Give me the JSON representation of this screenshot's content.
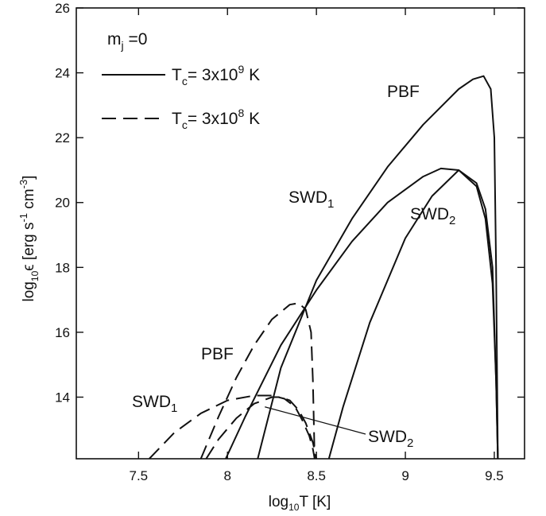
{
  "chart_data": {
    "type": "line",
    "xlabel": {
      "base": "log",
      "sub": "10",
      "rest": "T  [K]"
    },
    "ylabel": {
      "base": "log",
      "sub": "10",
      "sym": "ϵ",
      "unit_a": "[erg s",
      "sup1": "-1",
      "unit_b": " cm",
      "sup2": "-3",
      "unit_c": "]"
    },
    "xlim": [
      7.15,
      9.67
    ],
    "ylim": [
      12.1,
      26
    ],
    "xticks": [
      7.5,
      8,
      8.5,
      9,
      9.5
    ],
    "yticks": [
      14,
      16,
      18,
      20,
      22,
      24,
      26
    ],
    "xtick_labels": [
      "7.5",
      "8",
      "8.5",
      "9",
      "9.5"
    ],
    "ytick_labels": [
      "14",
      "16",
      "18",
      "20",
      "22",
      "24",
      "26"
    ],
    "legend": {
      "header": {
        "base": "m",
        "sub": "j",
        "rest": " =0"
      },
      "entries": [
        {
          "style": "solid",
          "pre": "T",
          "sub": "c",
          "mid": "= 3x10",
          "sup": "9",
          "post": " K"
        },
        {
          "style": "dashed",
          "pre": "T",
          "sub": "c",
          "mid": "= 3x10",
          "sup": "8",
          "post": " K"
        }
      ]
    },
    "annotations": [
      {
        "id": "pbf-hot",
        "base": "PBF",
        "sub": ""
      },
      {
        "id": "swd1-hot",
        "base": "SWD",
        "sub": "1"
      },
      {
        "id": "swd2-hot",
        "base": "SWD",
        "sub": "2"
      },
      {
        "id": "pbf-cold",
        "base": "PBF",
        "sub": ""
      },
      {
        "id": "swd1-cold",
        "base": "SWD",
        "sub": "1"
      },
      {
        "id": "swd2-cold",
        "base": "SWD",
        "sub": "2"
      }
    ],
    "series": [
      {
        "process": "PBF",
        "tc": "3x10^9 K",
        "style": "solid",
        "x": [
          8.17,
          8.3,
          8.5,
          8.7,
          8.9,
          9.1,
          9.3,
          9.38,
          9.44,
          9.48,
          9.5,
          9.51,
          9.52
        ],
        "y": [
          12.1,
          14.9,
          17.6,
          19.5,
          21.1,
          22.4,
          23.5,
          23.8,
          23.9,
          23.5,
          22.0,
          18.0,
          12.1
        ]
      },
      {
        "process": "SWD1",
        "tc": "3x10^9 K",
        "style": "solid",
        "x": [
          7.99,
          8.1,
          8.3,
          8.5,
          8.7,
          8.9,
          9.1,
          9.2,
          9.3,
          9.4,
          9.45,
          9.49,
          9.51,
          9.52
        ],
        "y": [
          12.1,
          13.4,
          15.6,
          17.3,
          18.8,
          20.0,
          20.8,
          21.05,
          21.0,
          20.5,
          19.5,
          17.5,
          14.5,
          12.1
        ]
      },
      {
        "process": "SWD2",
        "tc": "3x10^9 K",
        "style": "solid",
        "x": [
          8.57,
          8.65,
          8.8,
          9.0,
          9.15,
          9.3,
          9.4,
          9.45,
          9.49,
          9.51,
          9.52
        ],
        "y": [
          12.1,
          13.7,
          16.3,
          18.9,
          20.2,
          21.0,
          20.6,
          19.8,
          18.0,
          14.5,
          12.1
        ]
      },
      {
        "process": "PBF",
        "tc": "3x10^8 K",
        "style": "dashed",
        "x": [
          7.85,
          7.95,
          8.05,
          8.15,
          8.25,
          8.35,
          8.4,
          8.44,
          8.47,
          8.48,
          8.49
        ],
        "y": [
          12.1,
          13.4,
          14.6,
          15.6,
          16.4,
          16.85,
          16.9,
          16.7,
          16.0,
          14.5,
          12.1
        ]
      },
      {
        "process": "SWD1",
        "tc": "3x10^8 K",
        "style": "dashed",
        "x": [
          7.56,
          7.7,
          7.85,
          8.0,
          8.15,
          8.25,
          8.32,
          8.38,
          8.42,
          8.46,
          8.48,
          8.49
        ],
        "y": [
          12.1,
          12.9,
          13.5,
          13.9,
          14.05,
          14.05,
          13.95,
          13.7,
          13.3,
          12.8,
          12.4,
          12.1
        ]
      },
      {
        "process": "SWD2",
        "tc": "3x10^8 K",
        "style": "dashed",
        "x": [
          7.88,
          7.95,
          8.05,
          8.15,
          8.25,
          8.3,
          8.35,
          8.4,
          8.44,
          8.48,
          8.5
        ],
        "y": [
          12.1,
          12.7,
          13.35,
          13.8,
          14.0,
          14.0,
          13.9,
          13.6,
          13.2,
          12.6,
          12.1
        ]
      }
    ]
  }
}
